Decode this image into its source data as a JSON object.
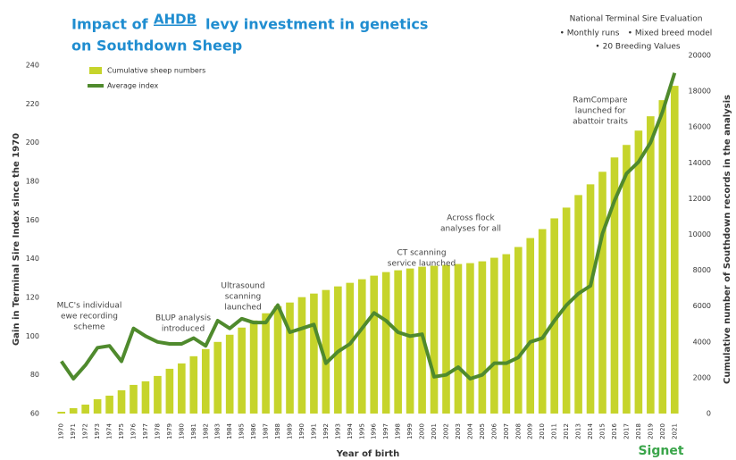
{
  "chart_data": {
    "type": "bar+line",
    "title_parts": [
      "Impact of",
      "AHDB",
      "levy investment in genetics",
      "on Southdown Sheep"
    ],
    "evaluation_box": {
      "title": "National Terminal Sire Evaluation",
      "bullets": [
        "• Monthly runs",
        "• Mixed breed model",
        "• 20 Breeding Values"
      ]
    },
    "x_label": "Year of birth",
    "y_label": "Gain in Terminal Sire Index since the 1970",
    "y2_label": "Cumulative number of Southdown records in the analysis",
    "brand": "Signet",
    "categories": [
      "1970",
      "1971",
      "1972",
      "1973",
      "1974",
      "1975",
      "1976",
      "1977",
      "1978",
      "1979",
      "1980",
      "1981",
      "1982",
      "1983",
      "1984",
      "1985",
      "1986",
      "1987",
      "1988",
      "1989",
      "1990",
      "1991",
      "1992",
      "1993",
      "1994",
      "1995",
      "1996",
      "1997",
      "1998",
      "1999",
      "2000",
      "2001",
      "2002",
      "2003",
      "2004",
      "2005",
      "2006",
      "2007",
      "2008",
      "2009",
      "2010",
      "2011",
      "2012",
      "2013",
      "2014",
      "2015",
      "2016",
      "2017",
      "2018",
      "2019",
      "2020",
      "2021"
    ],
    "series": [
      {
        "name": "Cumulative sheep numbers",
        "type": "bar",
        "axis": "y2",
        "color": "#c6d42b",
        "values": [
          100,
          300,
          500,
          800,
          1000,
          1300,
          1600,
          1800,
          2100,
          2500,
          2800,
          3200,
          3600,
          4000,
          4400,
          4800,
          5200,
          5600,
          6000,
          6200,
          6500,
          6700,
          6900,
          7100,
          7300,
          7500,
          7700,
          7900,
          8000,
          8100,
          8200,
          8250,
          8300,
          8350,
          8400,
          8500,
          8700,
          8900,
          9300,
          9800,
          10300,
          10900,
          11500,
          12200,
          12800,
          13500,
          14300,
          15000,
          15800,
          16600,
          17500,
          18300
        ]
      },
      {
        "name": "Average index",
        "type": "line",
        "axis": "y",
        "color": "#4f8a2d",
        "values": [
          87,
          78,
          85,
          94,
          95,
          87,
          104,
          100,
          97,
          96,
          96,
          99,
          95,
          108,
          104,
          109,
          107,
          107,
          116,
          102,
          104,
          106,
          86,
          92,
          96,
          104,
          112,
          108,
          102,
          100,
          101,
          79,
          80,
          84,
          78,
          80,
          86,
          86,
          89,
          97,
          99,
          108,
          116,
          122,
          126,
          153,
          170,
          184,
          190,
          200,
          216,
          236
        ]
      }
    ],
    "ylim": [
      60,
      240
    ],
    "yticks": [
      60,
      80,
      100,
      120,
      140,
      160,
      180,
      200,
      220,
      240
    ],
    "y2lim": [
      0,
      20000
    ],
    "y2ticks": [
      0,
      2000,
      4000,
      6000,
      8000,
      10000,
      12000,
      14000,
      16000,
      18000,
      20000
    ],
    "legend": "top-left",
    "annotations": [
      [
        "MLC's individual",
        "ewe recording",
        "scheme"
      ],
      [
        "BLUP analysis",
        "introduced"
      ],
      [
        "Ultrasound",
        "scanning",
        "launched"
      ],
      [
        "CT scanning",
        "service launched"
      ],
      [
        "Across flock",
        "analyses for all"
      ],
      [
        "RamCompare",
        "launched for",
        "abattoir traits"
      ]
    ]
  }
}
